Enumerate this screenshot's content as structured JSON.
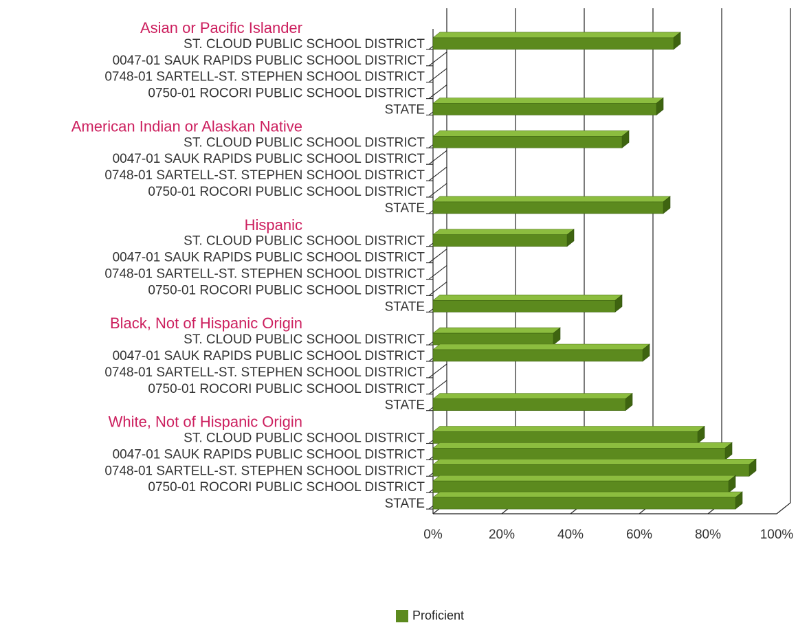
{
  "chart_data": {
    "type": "bar",
    "orientation": "horizontal",
    "style": "3d",
    "xlim": [
      0,
      100
    ],
    "x_ticks": [
      "0%",
      "20%",
      "40%",
      "60%",
      "80%",
      "100%"
    ],
    "grid": true,
    "legend": {
      "placement": "bottom-center",
      "entries": [
        "Proficient"
      ]
    },
    "colors": {
      "bar_front": "#5c8a1e",
      "bar_top": "#8cbd3f",
      "bar_side": "#3e6410",
      "group_title": "#cc1f5e",
      "grid": "#222222"
    },
    "groups": [
      {
        "name": "Asian or Pacific Islander",
        "categories": [
          "ST. CLOUD PUBLIC SCHOOL DISTRICT",
          "0047-01 SAUK RAPIDS PUBLIC SCHOOL DISTRICT",
          "0748-01 SARTELL-ST. STEPHEN SCHOOL DISTRICT",
          "0750-01 ROCORI PUBLIC SCHOOL DISTRICT",
          "STATE"
        ],
        "values": [
          70,
          null,
          null,
          null,
          65
        ]
      },
      {
        "name": "American Indian or Alaskan Native",
        "categories": [
          "ST. CLOUD PUBLIC SCHOOL DISTRICT",
          "0047-01 SAUK RAPIDS PUBLIC SCHOOL DISTRICT",
          "0748-01 SARTELL-ST. STEPHEN SCHOOL DISTRICT",
          "0750-01 ROCORI PUBLIC SCHOOL DISTRICT",
          "STATE"
        ],
        "values": [
          55,
          null,
          null,
          null,
          67
        ]
      },
      {
        "name": "Hispanic",
        "categories": [
          "ST. CLOUD PUBLIC SCHOOL DISTRICT",
          "0047-01 SAUK RAPIDS PUBLIC SCHOOL DISTRICT",
          "0748-01 SARTELL-ST. STEPHEN SCHOOL DISTRICT",
          "0750-01 ROCORI PUBLIC SCHOOL DISTRICT",
          "STATE"
        ],
        "values": [
          39,
          null,
          null,
          null,
          53
        ]
      },
      {
        "name": "Black, Not of Hispanic Origin",
        "categories": [
          "ST. CLOUD PUBLIC SCHOOL DISTRICT",
          "0047-01 SAUK RAPIDS PUBLIC SCHOOL DISTRICT",
          "0748-01 SARTELL-ST. STEPHEN SCHOOL DISTRICT",
          "0750-01 ROCORI PUBLIC SCHOOL DISTRICT",
          "STATE"
        ],
        "values": [
          35,
          61,
          null,
          null,
          56
        ]
      },
      {
        "name": "White, Not of Hispanic Origin",
        "categories": [
          "ST. CLOUD PUBLIC SCHOOL DISTRICT",
          "0047-01 SAUK RAPIDS PUBLIC SCHOOL DISTRICT",
          "0748-01 SARTELL-ST. STEPHEN SCHOOL DISTRICT",
          "0750-01 ROCORI PUBLIC SCHOOL DISTRICT",
          "STATE"
        ],
        "values": [
          77,
          85,
          92,
          86,
          88
        ]
      }
    ]
  }
}
